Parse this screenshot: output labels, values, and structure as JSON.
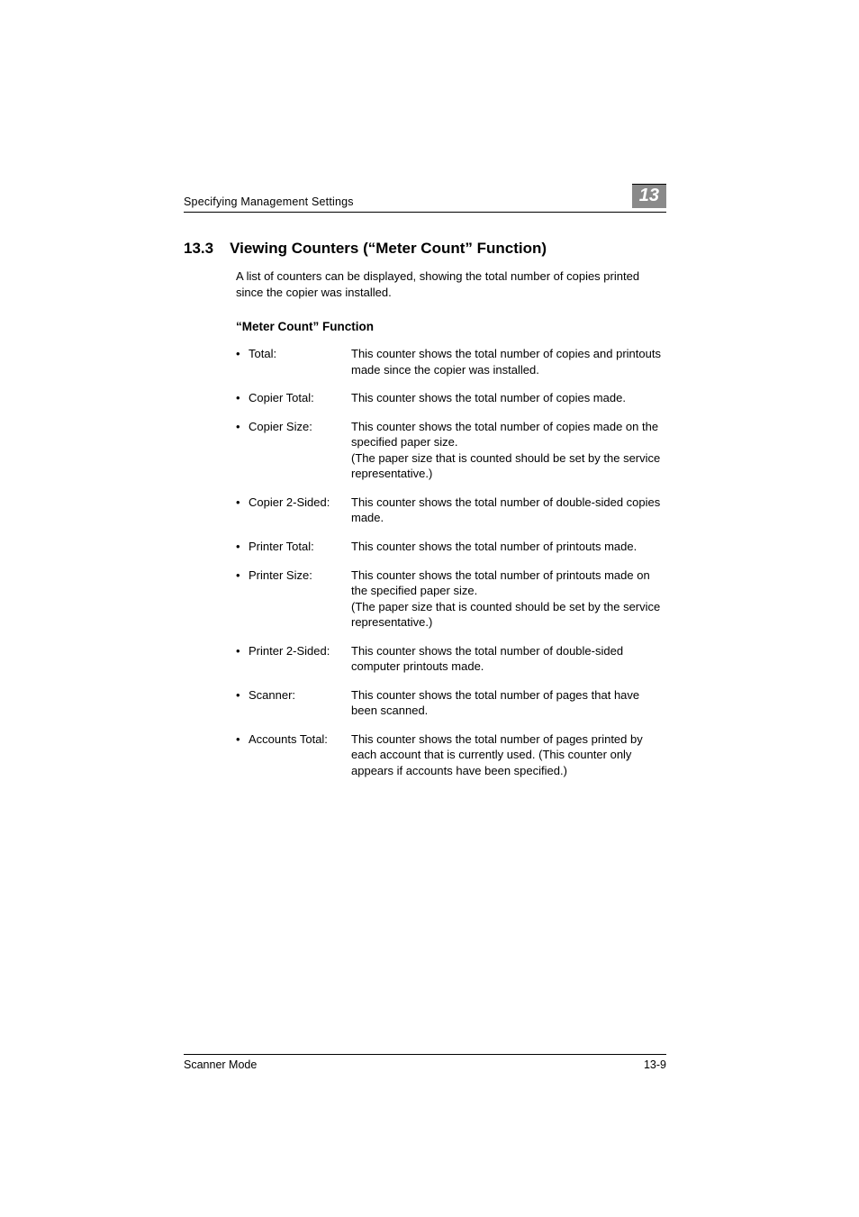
{
  "colors": {
    "badge_bg": "#8a8a8a",
    "text": "#000000",
    "background": "#ffffff",
    "rule": "#000000"
  },
  "header": {
    "title": "Specifying Management Settings",
    "page_badge": "13"
  },
  "section": {
    "number": "13.3",
    "title": "Viewing Counters (“Meter Count” Function)",
    "intro": "A list of counters can be displayed, showing the total number of copies printed since the copier was installed.",
    "subheading": "“Meter Count” Function"
  },
  "definitions": [
    {
      "term": "Total:",
      "desc": "This counter shows the total number of copies and printouts made since the copier was installed."
    },
    {
      "term": "Copier Total:",
      "desc": "This counter shows the total number of copies made."
    },
    {
      "term": "Copier Size:",
      "desc": "This counter shows the total number of copies made on the specified paper size.\n(The paper size that is counted should be set by the service representative.)"
    },
    {
      "term": "Copier 2-Sided:",
      "desc": "This counter shows the total number of double-sided copies made."
    },
    {
      "term": "Printer Total:",
      "desc": "This counter shows the total number of printouts made."
    },
    {
      "term": "Printer Size:",
      "desc": "This counter shows the total number of printouts made on the specified paper size.\n(The paper size that is counted should be set by the service representative.)"
    },
    {
      "term": "Printer 2-Sided:",
      "desc": "This counter shows the total number of double-sided computer printouts made."
    },
    {
      "term": "Scanner:",
      "desc": "This counter shows the total number of pages that have been scanned."
    },
    {
      "term": "Accounts Total:",
      "desc": "This counter shows the total number of pages printed by each account that is currently used. (This counter only appears if accounts have been specified.)"
    }
  ],
  "footer": {
    "left": "Scanner Mode",
    "right": "13-9"
  }
}
